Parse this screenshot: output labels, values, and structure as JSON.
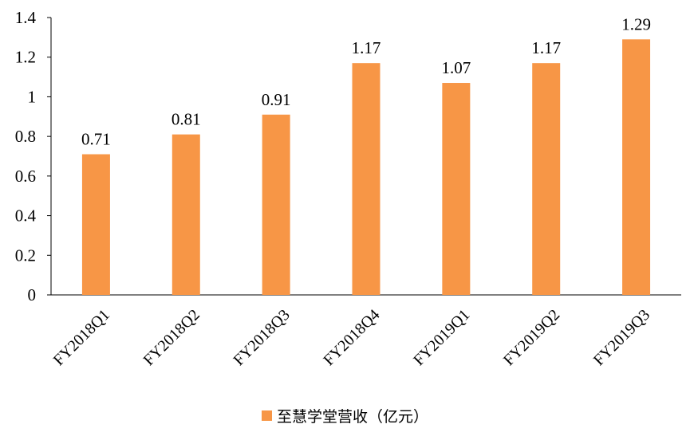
{
  "chart_data": {
    "type": "bar",
    "categories": [
      "FY2018Q1",
      "FY2018Q2",
      "FY2018Q3",
      "FY2018Q4",
      "FY2019Q1",
      "FY2019Q2",
      "FY2019Q3"
    ],
    "series": [
      {
        "name": "至慧学堂营收（亿元）",
        "values": [
          0.71,
          0.81,
          0.91,
          1.17,
          1.07,
          1.17,
          1.29
        ],
        "color": "#F79646"
      }
    ],
    "data_labels": [
      "0.71",
      "0.81",
      "0.91",
      "1.17",
      "1.07",
      "1.17",
      "1.29"
    ],
    "yticks": [
      "0",
      "0.2",
      "0.4",
      "0.6",
      "0.8",
      "1",
      "1.2",
      "1.4"
    ],
    "ylim": [
      0,
      1.4
    ],
    "grid": false,
    "legend_position": "bottom",
    "title": "",
    "xlabel": "",
    "ylabel": ""
  }
}
